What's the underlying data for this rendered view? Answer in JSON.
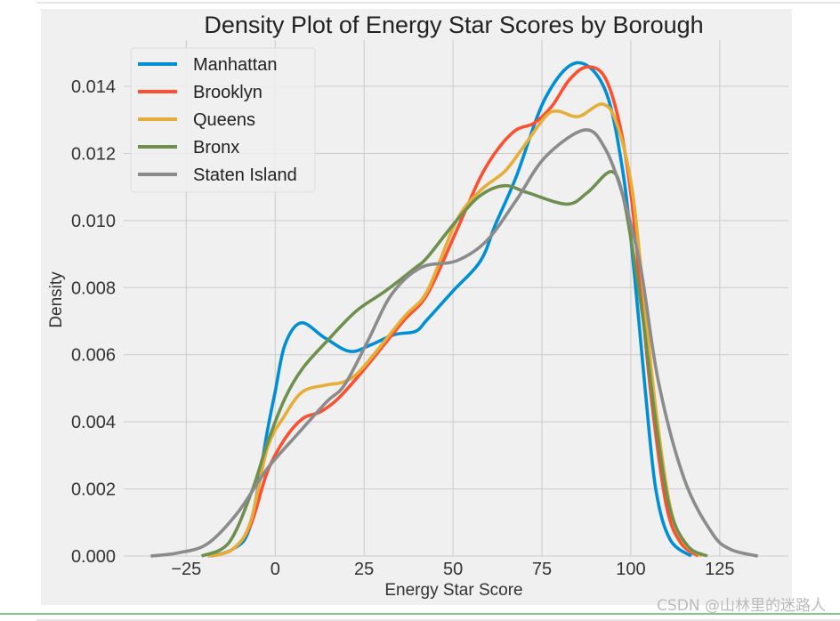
{
  "chart_data": {
    "type": "line",
    "title": "Density Plot of Energy Star Scores by Borough",
    "xlabel": "Energy Star Score",
    "ylabel": "Density",
    "xlim": [
      -42.6,
      144.3
    ],
    "ylim": [
      0,
      0.01538
    ],
    "xticks": [
      -25,
      0,
      25,
      50,
      75,
      100,
      125
    ],
    "xtick_labels": [
      "−25",
      "0",
      "25",
      "50",
      "75",
      "100",
      "125"
    ],
    "yticks": [
      0,
      0.002,
      0.004,
      0.006,
      0.008,
      0.01,
      0.012,
      0.014
    ],
    "ytick_labels": [
      "0.000",
      "0.002",
      "0.004",
      "0.006",
      "0.008",
      "0.010",
      "0.012",
      "0.014"
    ],
    "grid": true,
    "legend_position": "top-left",
    "series": [
      {
        "name": "Manhattan",
        "color": "#008fd5",
        "x": [
          -19,
          -12,
          -7,
          -2.25,
          0,
          2.75,
          7.3,
          14,
          21,
          27,
          33.5,
          39.5,
          42.75,
          50,
          57.75,
          62,
          67.75,
          76,
          84.75,
          92.75,
          97.75,
          101,
          104,
          107,
          111,
          117
        ],
        "y": [
          0,
          0.0002,
          0.0009,
          0.0037,
          0.0049,
          0.0063,
          0.00695,
          0.0065,
          0.0061,
          0.0063,
          0.0066,
          0.0067,
          0.00705,
          0.0079,
          0.0088,
          0.0099,
          0.0113,
          0.01366,
          0.0147,
          0.0139,
          0.01146,
          0.0084,
          0.005,
          0.002,
          0.0005,
          0
        ]
      },
      {
        "name": "Brooklyn",
        "color": "#fc4f30",
        "x": [
          -18,
          -12,
          -7,
          -2.25,
          2.75,
          7.75,
          12.75,
          17.75,
          24.5,
          36,
          42.75,
          51,
          57.75,
          62.75,
          67.75,
          72.75,
          77.75,
          82.75,
          87.75,
          92.75,
          97,
          100.25,
          102.75,
          106,
          110,
          114,
          119
        ],
        "y": [
          0,
          0.0002,
          0.0009,
          0.0025,
          0.0035,
          0.0041,
          0.0043,
          0.0047,
          0.0055,
          0.007,
          0.0078,
          0.0097,
          0.0113,
          0.01215,
          0.0127,
          0.0129,
          0.0134,
          0.0142,
          0.01458,
          0.01426,
          0.0128,
          0.0106,
          0.0079,
          0.0045,
          0.0015,
          0.0004,
          0
        ]
      },
      {
        "name": "Queens",
        "color": "#e5ae38",
        "x": [
          -19,
          -12,
          -7,
          -2.25,
          2.75,
          7.75,
          14.5,
          19.5,
          24.5,
          36,
          42.75,
          51,
          57.75,
          64.5,
          69.5,
          76,
          79.5,
          85.25,
          92,
          96,
          100.25,
          103.5,
          107,
          111,
          115,
          120
        ],
        "y": [
          0,
          0.0002,
          0.001,
          0.0032,
          0.0042,
          0.0049,
          0.0051,
          0.0052,
          0.0056,
          0.0071,
          0.0079,
          0.01,
          0.0109,
          0.01146,
          0.01215,
          0.0131,
          0.01326,
          0.0131,
          0.01347,
          0.0129,
          0.011,
          0.0079,
          0.0044,
          0.0015,
          0.0004,
          0
        ]
      },
      {
        "name": "Bronx",
        "color": "#6d904f",
        "x": [
          -20.7,
          -13,
          -6.5,
          -2.25,
          2.75,
          7.75,
          14.5,
          22.75,
          31,
          39.5,
          42.75,
          51,
          57.75,
          64.5,
          71,
          82,
          87.75,
          94.5,
          97.75,
          101,
          103.5,
          107,
          111,
          116,
          121.5
        ],
        "y": [
          0,
          0.0004,
          0.00195,
          0.00335,
          0.0047,
          0.0056,
          0.0064,
          0.0073,
          0.0079,
          0.0086,
          0.0089,
          0.01,
          0.01075,
          0.01104,
          0.01083,
          0.01049,
          0.01083,
          0.01146,
          0.01075,
          0.0088,
          0.007,
          0.004,
          0.0014,
          0.0003,
          0
        ]
      },
      {
        "name": "Staten Island",
        "color": "#8b8b8b",
        "x": [
          -35,
          -27,
          -19,
          -10.5,
          -2.25,
          6,
          14.5,
          19.5,
          26,
          32.75,
          41,
          51,
          59.5,
          67.75,
          76,
          87,
          92.75,
          97.75,
          102.75,
          107.75,
          115,
          122.75,
          128,
          135.7
        ],
        "y": [
          0,
          0.0001,
          0.00037,
          0.0013,
          0.0026,
          0.0036,
          0.0046,
          0.0051,
          0.0064,
          0.0078,
          0.0086,
          0.0088,
          0.0094,
          0.0106,
          0.0119,
          0.0127,
          0.01215,
          0.01075,
          0.0086,
          0.0052,
          0.0023,
          0.0007,
          0.0002,
          0
        ]
      }
    ]
  },
  "watermark": "CSDN @山林里的迷路人"
}
